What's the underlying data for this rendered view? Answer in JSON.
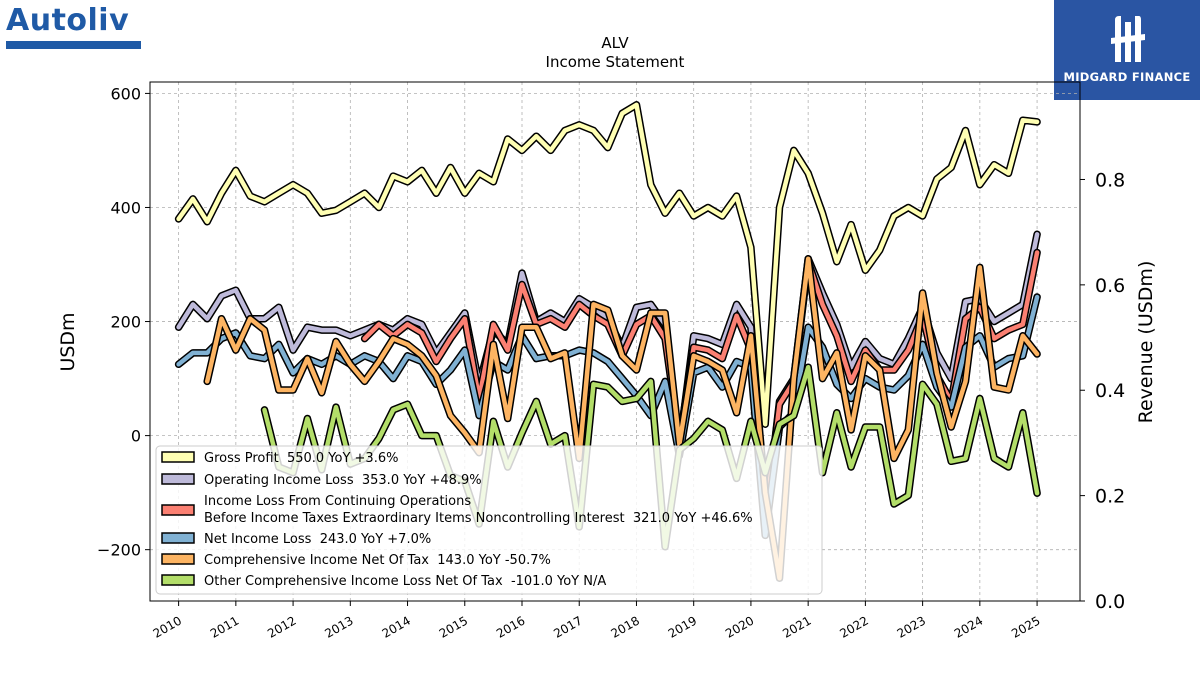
{
  "logo_left": {
    "text": "Autoliv"
  },
  "logo_right": {
    "text": "MIDGARD FINANCE"
  },
  "chart_data": {
    "type": "line",
    "title": "ALV",
    "subtitle": "Income Statement",
    "ylabel": "USDm",
    "ylabel_right": "Revenue (USDm)",
    "ylim": [
      -290,
      620
    ],
    "ylim_right": [
      0.0,
      0.985
    ],
    "yticks": [
      -200,
      0,
      200,
      400,
      600
    ],
    "ytick_labels": [
      "−200",
      "0",
      "200",
      "400",
      "600"
    ],
    "yticks_right": [
      0.0,
      0.2,
      0.4,
      0.6,
      0.8
    ],
    "ytick_labels_right": [
      "0.0",
      "0.2",
      "0.4",
      "0.6",
      "0.8"
    ],
    "xlim": [
      2009.5,
      2025.75
    ],
    "xticks": [
      2010,
      2011,
      2012,
      2013,
      2014,
      2015,
      2016,
      2017,
      2018,
      2019,
      2020,
      2021,
      2022,
      2023,
      2024,
      2025
    ],
    "xtick_labels": [
      "2010",
      "2011",
      "2012",
      "2013",
      "2014",
      "2015",
      "2016",
      "2017",
      "2018",
      "2019",
      "2020",
      "2021",
      "2022",
      "2023",
      "2024",
      "2025"
    ],
    "grid": true,
    "legend_position": "lower-left",
    "series": [
      {
        "name": "Gross Profit",
        "legend": "Gross Profit  550.0 YoY +3.6%",
        "color": "#ffffb3",
        "x": [
          2010.0,
          2010.25,
          2010.5,
          2010.75,
          2011.0,
          2011.25,
          2011.5,
          2011.75,
          2012.0,
          2012.25,
          2012.5,
          2012.75,
          2013.0,
          2013.25,
          2013.5,
          2013.75,
          2014.0,
          2014.25,
          2014.5,
          2014.75,
          2015.0,
          2015.25,
          2015.5,
          2015.75,
          2016.0,
          2016.25,
          2016.5,
          2016.75,
          2017.0,
          2017.25,
          2017.5,
          2017.75,
          2018.0,
          2018.25,
          2018.5,
          2018.75,
          2019.0,
          2019.25,
          2019.5,
          2019.75,
          2020.0,
          2020.25,
          2020.5,
          2020.75,
          2021.0,
          2021.25,
          2021.5,
          2021.75,
          2022.0,
          2022.25,
          2022.5,
          2022.75,
          2023.0,
          2023.25,
          2023.5,
          2023.75,
          2024.0,
          2024.25,
          2024.5,
          2024.75,
          2025.0
        ],
        "y": [
          380,
          415,
          375,
          425,
          465,
          420,
          410,
          425,
          440,
          425,
          390,
          395,
          410,
          425,
          400,
          455,
          445,
          465,
          425,
          470,
          425,
          460,
          445,
          520,
          500,
          525,
          500,
          535,
          545,
          535,
          505,
          565,
          580,
          440,
          390,
          425,
          385,
          400,
          385,
          420,
          330,
          20,
          400,
          500,
          460,
          390,
          305,
          370,
          290,
          325,
          385,
          400,
          385,
          450,
          470,
          535,
          440,
          475,
          460,
          553,
          550
        ]
      },
      {
        "name": "Operating Income Loss",
        "legend": "Operating Income Loss  353.0 YoY +48.9%",
        "color": "#bebada",
        "x": [
          2010.0,
          2010.25,
          2010.5,
          2010.75,
          2011.0,
          2011.25,
          2011.5,
          2011.75,
          2012.0,
          2012.25,
          2012.5,
          2012.75,
          2013.0,
          2013.25,
          2013.5,
          2013.75,
          2014.0,
          2014.25,
          2014.5,
          2014.75,
          2015.0,
          2015.25,
          2015.5,
          2015.75,
          2016.0,
          2016.25,
          2016.5,
          2016.75,
          2017.0,
          2017.25,
          2017.5,
          2017.75,
          2018.0,
          2018.25,
          2018.5,
          2018.75,
          2019.0,
          2019.25,
          2019.5,
          2019.75,
          2020.0,
          2020.25,
          2020.5,
          2020.75,
          2021.0,
          2021.25,
          2021.5,
          2021.75,
          2022.0,
          2022.25,
          2022.5,
          2022.75,
          2023.0,
          2023.25,
          2023.5,
          2023.75,
          2024.0,
          2024.25,
          2024.5,
          2024.75,
          2025.0
        ],
        "y": [
          190,
          230,
          205,
          245,
          255,
          205,
          205,
          225,
          150,
          190,
          185,
          185,
          175,
          185,
          195,
          185,
          205,
          195,
          145,
          180,
          215,
          90,
          185,
          160,
          285,
          200,
          215,
          200,
          240,
          225,
          205,
          155,
          225,
          230,
          195,
          -20,
          175,
          170,
          160,
          230,
          190,
          -155,
          60,
          100,
          310,
          250,
          195,
          120,
          165,
          135,
          125,
          170,
          225,
          145,
          100,
          235,
          240,
          200,
          215,
          230,
          353
        ]
      },
      {
        "name": "Income Loss From Continuing Operations Before Income Taxes Extraordinary Items Noncontrolling Interest",
        "legend_line1": "Income Loss From Continuing Operations",
        "legend_line2": "Before Income Taxes Extraordinary Items Noncontrolling Interest  321.0 YoY +46.6%",
        "color": "#fb8072",
        "x": [
          2013.25,
          2013.5,
          2013.75,
          2014.0,
          2014.25,
          2014.5,
          2014.75,
          2015.0,
          2015.25,
          2015.5,
          2015.75,
          2016.0,
          2016.25,
          2016.5,
          2016.75,
          2017.0,
          2017.25,
          2017.5,
          2017.75,
          2018.0,
          2018.25,
          2018.5,
          2018.75,
          2019.0,
          2019.25,
          2019.5,
          2019.75,
          2020.0,
          2020.25,
          2020.5,
          2020.75,
          2021.0,
          2021.25,
          2021.5,
          2021.75,
          2022.0,
          2022.25,
          2022.5,
          2022.75,
          2023.0,
          2023.25,
          2023.5,
          2023.75,
          2024.0,
          2024.25,
          2024.5,
          2024.75,
          2025.0
        ],
        "y": [
          170,
          195,
          175,
          195,
          180,
          130,
          170,
          205,
          65,
          195,
          150,
          265,
          195,
          205,
          190,
          230,
          210,
          195,
          140,
          195,
          210,
          170,
          -10,
          155,
          150,
          135,
          210,
          150,
          -150,
          55,
          95,
          305,
          230,
          175,
          95,
          150,
          115,
          115,
          150,
          210,
          105,
          60,
          205,
          225,
          170,
          185,
          195,
          321
        ]
      },
      {
        "name": "Net Income Loss",
        "legend": "Net Income Loss  243.0 YoY +7.0%",
        "color": "#80b1d3",
        "x": [
          2010.0,
          2010.25,
          2010.5,
          2010.75,
          2011.0,
          2011.25,
          2011.5,
          2011.75,
          2012.0,
          2012.25,
          2012.5,
          2012.75,
          2013.0,
          2013.25,
          2013.5,
          2013.75,
          2014.0,
          2014.25,
          2014.5,
          2014.75,
          2015.0,
          2015.25,
          2015.5,
          2015.75,
          2016.0,
          2016.25,
          2016.5,
          2016.75,
          2017.0,
          2017.25,
          2017.5,
          2017.75,
          2018.0,
          2018.25,
          2018.5,
          2018.75,
          2019.0,
          2019.25,
          2019.5,
          2019.75,
          2020.0,
          2020.25,
          2020.5,
          2020.75,
          2021.0,
          2021.25,
          2021.5,
          2021.75,
          2022.0,
          2022.25,
          2022.5,
          2022.75,
          2023.0,
          2023.25,
          2023.5,
          2023.75,
          2024.0,
          2024.25,
          2024.5,
          2024.75,
          2025.0
        ],
        "y": [
          125,
          145,
          145,
          170,
          180,
          140,
          135,
          160,
          110,
          135,
          125,
          140,
          125,
          140,
          130,
          100,
          140,
          130,
          90,
          115,
          150,
          35,
          130,
          115,
          175,
          135,
          140,
          140,
          150,
          145,
          130,
          100,
          70,
          35,
          95,
          -35,
          110,
          120,
          85,
          130,
          120,
          -175,
          15,
          40,
          190,
          155,
          90,
          65,
          100,
          85,
          80,
          105,
          160,
          85,
          50,
          155,
          175,
          120,
          135,
          140,
          243
        ]
      },
      {
        "name": "Comprehensive Income Net Of Tax",
        "legend": "Comprehensive Income Net Of Tax  143.0 YoY -50.7%",
        "color": "#fdb462",
        "x": [
          2010.5,
          2010.75,
          2011.0,
          2011.25,
          2011.5,
          2011.75,
          2012.0,
          2012.25,
          2012.5,
          2012.75,
          2013.0,
          2013.25,
          2013.5,
          2013.75,
          2014.0,
          2014.25,
          2014.5,
          2014.75,
          2015.0,
          2015.25,
          2015.5,
          2015.75,
          2016.0,
          2016.25,
          2016.5,
          2016.75,
          2017.0,
          2017.25,
          2017.5,
          2017.75,
          2018.0,
          2018.25,
          2018.5,
          2018.75,
          2019.0,
          2019.25,
          2019.5,
          2019.75,
          2020.0,
          2020.25,
          2020.5,
          2020.75,
          2021.0,
          2021.25,
          2021.5,
          2021.75,
          2022.0,
          2022.25,
          2022.5,
          2022.75,
          2023.0,
          2023.25,
          2023.5,
          2023.75,
          2024.0,
          2024.25,
          2024.5,
          2024.75,
          2025.0
        ],
        "y": [
          95,
          205,
          150,
          205,
          185,
          80,
          80,
          135,
          75,
          165,
          125,
          95,
          130,
          170,
          160,
          140,
          105,
          35,
          5,
          -30,
          160,
          30,
          190,
          190,
          135,
          145,
          -40,
          230,
          220,
          140,
          115,
          215,
          215,
          -15,
          140,
          130,
          115,
          40,
          175,
          -100,
          -250,
          100,
          310,
          100,
          145,
          10,
          140,
          115,
          -40,
          10,
          250,
          110,
          15,
          95,
          295,
          85,
          80,
          175,
          143
        ]
      },
      {
        "name": "Other Comprehensive Income Loss Net Of Tax",
        "legend": "Other Comprehensive Income Loss Net Of Tax  -101.0 YoY N/A",
        "color": "#b3de69",
        "x": [
          2011.5,
          2011.75,
          2012.0,
          2012.25,
          2012.5,
          2012.75,
          2013.0,
          2013.25,
          2013.5,
          2013.75,
          2014.0,
          2014.25,
          2014.5,
          2014.75,
          2015.0,
          2015.25,
          2015.5,
          2015.75,
          2016.0,
          2016.25,
          2016.5,
          2016.75,
          2017.0,
          2017.25,
          2017.5,
          2017.75,
          2018.0,
          2018.25,
          2018.5,
          2018.75,
          2019.0,
          2019.25,
          2019.5,
          2019.75,
          2020.0,
          2020.25,
          2020.5,
          2020.75,
          2021.0,
          2021.25,
          2021.5,
          2021.75,
          2022.0,
          2022.25,
          2022.5,
          2022.75,
          2023.0,
          2023.25,
          2023.5,
          2023.75,
          2024.0,
          2024.25,
          2024.5,
          2024.75,
          2025.0
        ],
        "y": [
          45,
          -55,
          -65,
          30,
          -60,
          50,
          -50,
          -40,
          -5,
          45,
          55,
          0,
          0,
          -70,
          -80,
          -155,
          25,
          -55,
          5,
          60,
          -15,
          0,
          -160,
          90,
          85,
          60,
          65,
          95,
          -195,
          -25,
          -5,
          25,
          10,
          -75,
          25,
          -65,
          20,
          35,
          120,
          -65,
          40,
          -55,
          15,
          15,
          -120,
          -105,
          90,
          55,
          -45,
          -40,
          65,
          -40,
          -55,
          40,
          -101
        ]
      }
    ]
  }
}
